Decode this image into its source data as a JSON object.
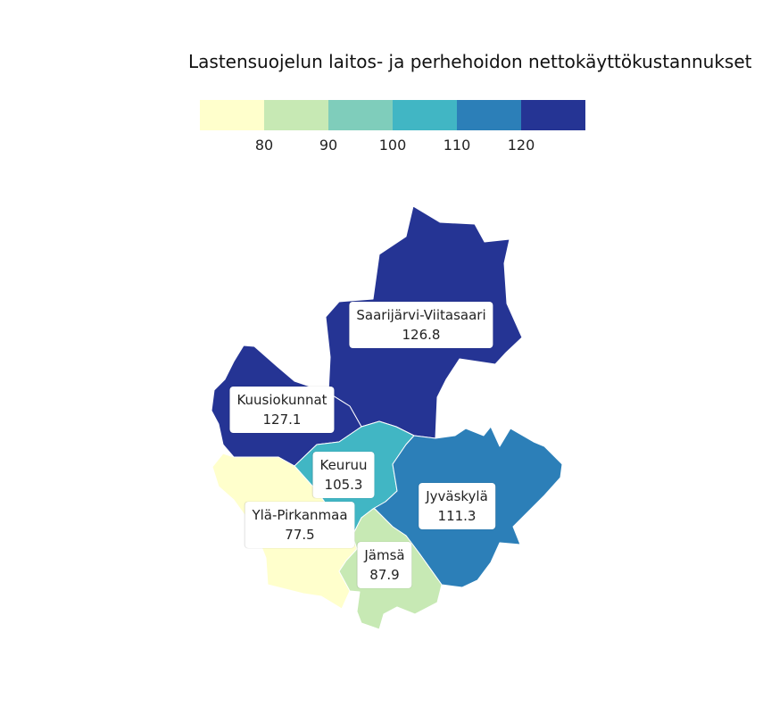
{
  "title": "Lastensuojelun laitos- ja perhehoidon nettokäyttökustannukset",
  "legend": {
    "colors": [
      "#ffffcc",
      "#c7e9b4",
      "#7fcdbb",
      "#41b6c4",
      "#2c7fb8",
      "#253494"
    ],
    "ticks": [
      "80",
      "90",
      "100",
      "110",
      "120"
    ]
  },
  "regions": {
    "saarijarvi": {
      "name": "Saarijärvi-Viitasaari",
      "value": "126.8",
      "color": "#253494"
    },
    "kuusiokunnat": {
      "name": "Kuusiokunnat",
      "value": "127.1",
      "color": "#253494"
    },
    "keuruu": {
      "name": "Keuruu",
      "value": "105.3",
      "color": "#41b6c4"
    },
    "jyvaskyla": {
      "name": "Jyväskylä",
      "value": "111.3",
      "color": "#2c7fb8"
    },
    "yla_pirkanmaa": {
      "name": "Ylä-Pirkanmaa",
      "value": "77.5",
      "color": "#ffffcc"
    },
    "jamsa": {
      "name": "Jämsä",
      "value": "87.9",
      "color": "#c7e9b4"
    }
  }
}
